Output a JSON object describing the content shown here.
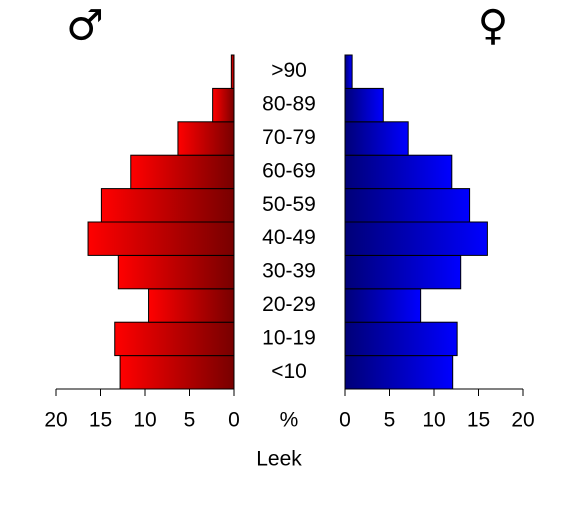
{
  "chart_data": {
    "type": "pyramid",
    "left_title": "♂",
    "right_title": "♀",
    "center_label": "%",
    "xlabel": "Leek",
    "categories": [
      "<10",
      "10-19",
      "20-29",
      "30-39",
      "40-49",
      "50-59",
      "60-69",
      "70-79",
      "80-89",
      ">90"
    ],
    "series": [
      {
        "side": "left",
        "gradient": [
          "#ff0000",
          "#780000"
        ],
        "values": [
          12.8,
          13.4,
          9.6,
          13.0,
          16.4,
          14.9,
          11.6,
          6.3,
          2.4,
          0.3
        ]
      },
      {
        "side": "right",
        "gradient": [
          "#000078",
          "#0000ff"
        ],
        "values": [
          12.1,
          12.6,
          8.5,
          13.0,
          16.0,
          14.0,
          12.0,
          7.1,
          4.3,
          0.8
        ]
      }
    ],
    "xlim": [
      0,
      20
    ],
    "xticks": [
      0,
      5,
      10,
      15,
      20
    ]
  }
}
